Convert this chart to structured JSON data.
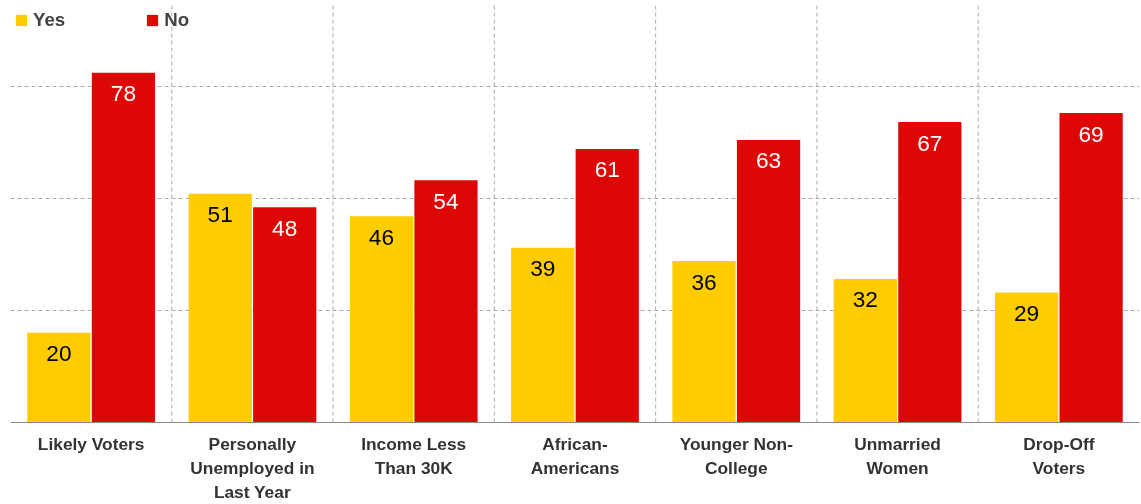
{
  "chart_data": {
    "type": "bar",
    "categories": [
      "Likely Voters",
      "Personally Unemployed in Last Year",
      "Income Less Than 30K",
      "African-Americans",
      "Younger Non-College",
      "Unmarried Women",
      "Drop-Off Voters"
    ],
    "series": [
      {
        "name": "Yes",
        "color": "#ffcc00",
        "values": [
          20,
          51,
          46,
          39,
          36,
          32,
          29
        ]
      },
      {
        "name": "No",
        "color": "#dd0806",
        "values": [
          78,
          48,
          54,
          61,
          63,
          67,
          69
        ]
      }
    ],
    "ylim": [
      0,
      93
    ],
    "yticks": [
      {
        "value": 25,
        "label": null
      },
      {
        "value": 50,
        "label": null
      },
      {
        "value": 75,
        "label": null
      }
    ],
    "tick_labels": "x",
    "grid": true,
    "legend": "top left",
    "data_labels": true
  }
}
